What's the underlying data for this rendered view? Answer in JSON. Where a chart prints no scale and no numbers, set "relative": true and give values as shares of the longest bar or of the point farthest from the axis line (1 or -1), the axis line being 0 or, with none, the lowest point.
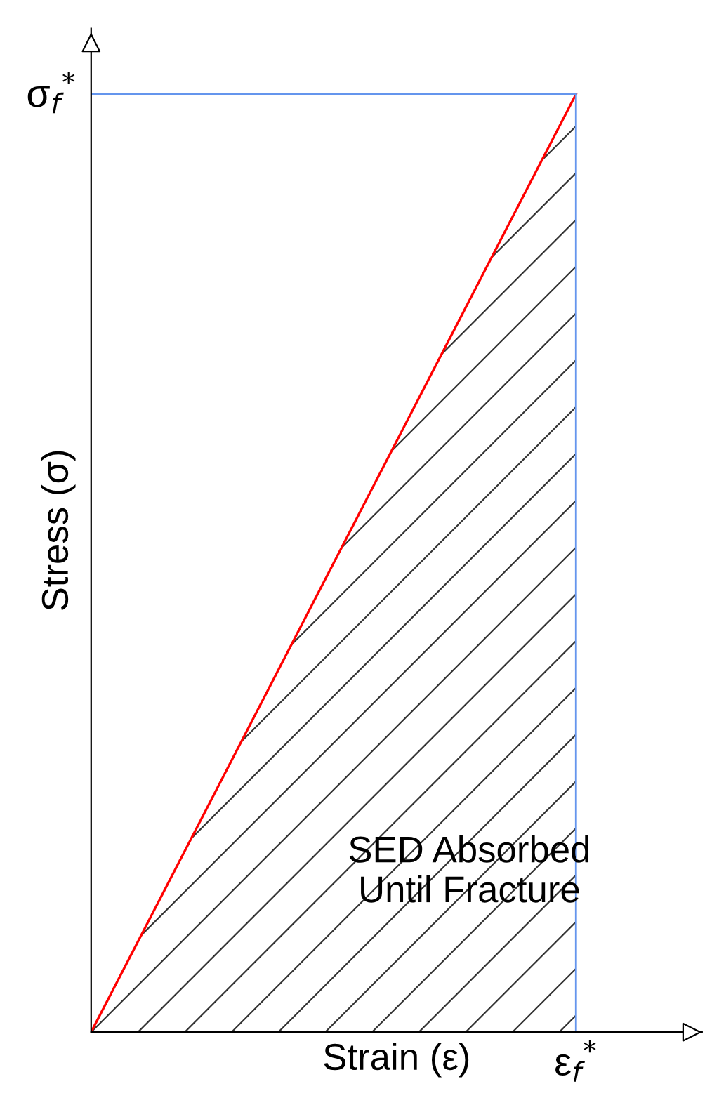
{
  "chart_data": {
    "type": "area",
    "relative": true,
    "xlabel": "Strain (ε)",
    "ylabel": "Stress (σ)",
    "categories": [
      null,
      null
    ],
    "series": [
      {
        "color": "#ff0000",
        "values": [
          0,
          1
        ]
      },
      {
        "type": "line",
        "color": "#6495ed",
        "values": [
          1,
          1
        ]
      }
    ],
    "annotations": [
      "σ$_{f}$$^{*}$",
      "ε$_{f}$$^{*}$",
      "SED Absorbed\nUntil Fracture"
    ]
  }
}
